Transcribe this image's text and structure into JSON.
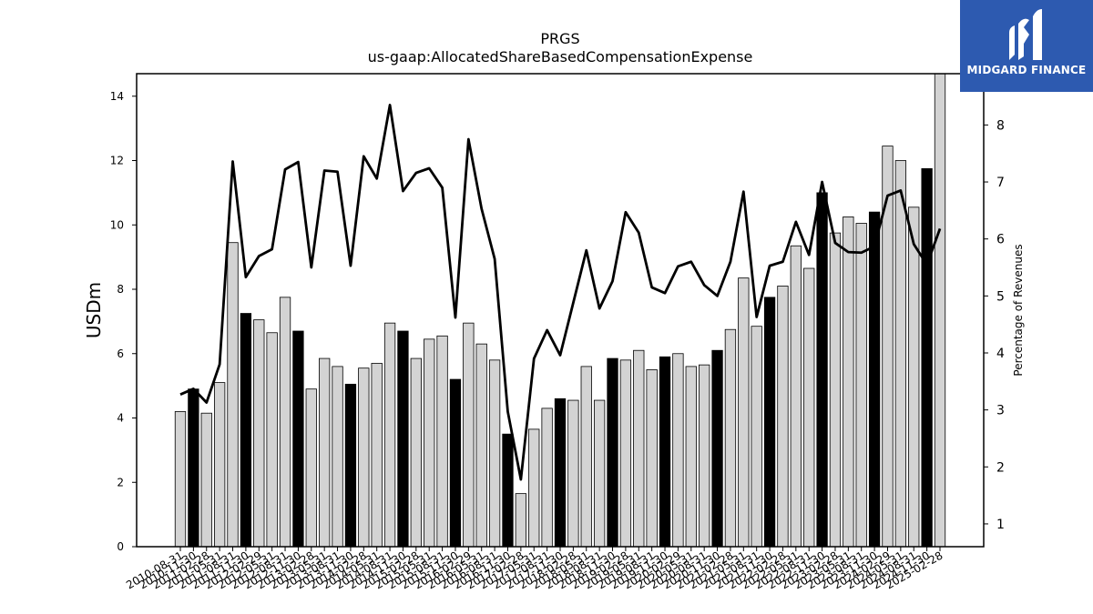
{
  "chart_data": {
    "type": "bar",
    "title": "PRGS",
    "subtitle": "us-gaap:AllocatedShareBasedCompensationExpense",
    "ylabel_left": "USDm",
    "ylabel_right": "Percentage of Revenues",
    "ylim_left": [
      0,
      14.7
    ],
    "ylim_right": [
      0.6,
      8.9
    ],
    "yticks_left": [
      "0",
      "2",
      "4",
      "6",
      "8",
      "10",
      "12",
      "14"
    ],
    "yticks_right": [
      "1",
      "2",
      "3",
      "4",
      "5",
      "6",
      "7",
      "8"
    ],
    "categories": [
      "2010-08-31",
      "2010-11-30",
      "2011-02-28",
      "2011-05-31",
      "2011-08-31",
      "2011-11-30",
      "2012-02-29",
      "2012-05-31",
      "2012-08-31",
      "2012-11-30",
      "2013-02-28",
      "2013-05-31",
      "2013-08-31",
      "2013-11-30",
      "2014-02-28",
      "2014-05-31",
      "2014-08-31",
      "2014-11-30",
      "2015-02-28",
      "2015-05-31",
      "2015-08-31",
      "2015-11-30",
      "2016-02-29",
      "2016-05-31",
      "2016-08-31",
      "2016-11-30",
      "2017-02-28",
      "2017-05-31",
      "2017-08-31",
      "2017-11-30",
      "2018-02-28",
      "2018-05-31",
      "2018-08-31",
      "2018-11-30",
      "2019-02-28",
      "2019-05-31",
      "2019-08-31",
      "2019-11-30",
      "2020-02-29",
      "2020-05-31",
      "2020-08-31",
      "2020-11-30",
      "2021-02-28",
      "2021-05-31",
      "2021-08-31",
      "2021-11-30",
      "2022-02-28",
      "2022-05-31",
      "2022-08-31",
      "2022-11-30",
      "2023-02-28",
      "2023-05-31",
      "2023-08-31",
      "2023-11-30",
      "2024-02-29",
      "2024-05-31",
      "2024-08-31",
      "2024-11-30",
      "2025-02-28"
    ],
    "bar_values": [
      4.2,
      4.9,
      4.15,
      5.1,
      9.45,
      7.25,
      7.05,
      6.65,
      7.75,
      6.7,
      4.9,
      5.85,
      5.6,
      5.05,
      5.55,
      5.7,
      6.95,
      6.7,
      5.85,
      6.45,
      6.55,
      5.2,
      6.95,
      6.3,
      5.8,
      3.5,
      1.65,
      3.65,
      4.3,
      4.6,
      4.55,
      5.6,
      4.55,
      5.85,
      5.8,
      6.1,
      5.5,
      5.9,
      6.0,
      5.6,
      5.65,
      6.1,
      6.75,
      8.35,
      6.85,
      7.75,
      8.1,
      9.35,
      8.65,
      11.0,
      9.75,
      10.25,
      10.05,
      10.4,
      12.45,
      12.0,
      10.55,
      11.75,
      14.7
    ],
    "bar_highlight": [
      false,
      true,
      false,
      false,
      false,
      true,
      false,
      false,
      false,
      true,
      false,
      false,
      false,
      true,
      false,
      false,
      false,
      true,
      false,
      false,
      false,
      true,
      false,
      false,
      false,
      true,
      false,
      false,
      false,
      true,
      false,
      false,
      false,
      true,
      false,
      false,
      false,
      true,
      false,
      false,
      false,
      true,
      false,
      false,
      false,
      true,
      false,
      false,
      false,
      true,
      false,
      false,
      false,
      true,
      false,
      false,
      false,
      true,
      false
    ],
    "line_values": [
      3.27,
      3.37,
      3.13,
      3.8,
      7.36,
      5.33,
      5.7,
      5.82,
      7.22,
      7.35,
      5.5,
      7.2,
      7.18,
      5.53,
      7.45,
      7.06,
      8.35,
      6.84,
      7.16,
      7.24,
      6.9,
      4.62,
      7.75,
      6.53,
      5.65,
      2.97,
      1.78,
      3.9,
      4.4,
      3.96,
      4.88,
      5.8,
      4.78,
      5.26,
      6.47,
      6.11,
      5.15,
      5.05,
      5.52,
      5.6,
      5.19,
      5.0,
      5.6,
      6.83,
      4.63,
      5.53,
      5.6,
      6.3,
      5.72,
      7.0,
      5.93,
      5.77,
      5.76,
      5.87,
      6.76,
      6.85,
      5.91,
      5.55,
      6.18
    ],
    "colors": {
      "bar_normal": "#d3d3d3",
      "bar_highlight": "#000000",
      "line": "#000000",
      "edge": "#000000"
    },
    "grid": false,
    "legend": "none"
  },
  "logo": {
    "text": "MIDGARD FINANCE",
    "icon": "midgard-logo-icon",
    "color": "#2d5ab0"
  }
}
